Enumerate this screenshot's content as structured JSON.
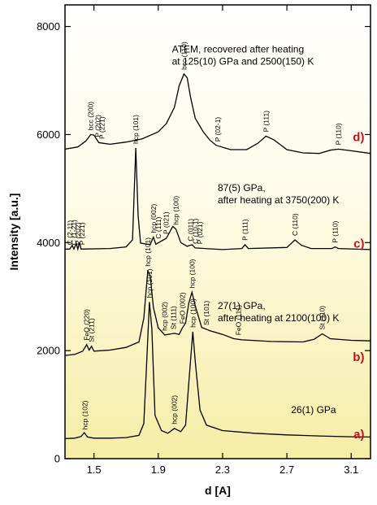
{
  "chart_data": {
    "type": "line",
    "xlabel": "d [A]",
    "ylabel": "Intensity [a.u.]",
    "xlim": [
      1.32,
      3.22
    ],
    "ylim": [
      0,
      8400
    ],
    "x_ticks": [
      1.5,
      1.9,
      2.3,
      2.7,
      3.1
    ],
    "y_ticks": [
      0,
      2000,
      4000,
      6000,
      8000
    ],
    "background": "yellow-gradient-bottom",
    "series": [
      {
        "letter": "a)",
        "annotation": [
          "26(1) GPa"
        ],
        "points": [
          [
            1.32,
            370
          ],
          [
            1.38,
            380
          ],
          [
            1.42,
            410
          ],
          [
            1.44,
            480
          ],
          [
            1.46,
            400
          ],
          [
            1.5,
            380
          ],
          [
            1.6,
            380
          ],
          [
            1.7,
            390
          ],
          [
            1.78,
            430
          ],
          [
            1.81,
            650
          ],
          [
            1.83,
            1900
          ],
          [
            1.845,
            2900
          ],
          [
            1.86,
            2400
          ],
          [
            1.88,
            800
          ],
          [
            1.92,
            520
          ],
          [
            1.96,
            470
          ],
          [
            2.0,
            560
          ],
          [
            2.04,
            500
          ],
          [
            2.07,
            620
          ],
          [
            2.095,
            1600
          ],
          [
            2.115,
            2350
          ],
          [
            2.13,
            1800
          ],
          [
            2.16,
            900
          ],
          [
            2.2,
            620
          ],
          [
            2.3,
            520
          ],
          [
            2.5,
            470
          ],
          [
            2.7,
            440
          ],
          [
            2.9,
            420
          ],
          [
            3.1,
            405
          ],
          [
            3.22,
            400
          ]
        ],
        "peaks": [
          {
            "label": "hcp (102)",
            "d": 1.445
          },
          {
            "label": "hcp (101)",
            "d": 1.845
          },
          {
            "label": "hcp (002)",
            "d": 2.0
          },
          {
            "label": "hcp (100)",
            "d": 2.115
          }
        ]
      },
      {
        "letter": "b)",
        "annotation": [
          "27(1) GPa,",
          "after heating at 2100(100) K"
        ],
        "points": [
          [
            1.32,
            1910
          ],
          [
            1.38,
            1930
          ],
          [
            1.43,
            1990
          ],
          [
            1.455,
            2110
          ],
          [
            1.47,
            2010
          ],
          [
            1.485,
            2080
          ],
          [
            1.5,
            1990
          ],
          [
            1.6,
            2010
          ],
          [
            1.7,
            2060
          ],
          [
            1.78,
            2160
          ],
          [
            1.81,
            2600
          ],
          [
            1.835,
            3480
          ],
          [
            1.85,
            3380
          ],
          [
            1.87,
            2800
          ],
          [
            1.9,
            2420
          ],
          [
            1.94,
            2290
          ],
          [
            2.0,
            2320
          ],
          [
            2.03,
            2300
          ],
          [
            2.05,
            2420
          ],
          [
            2.07,
            2510
          ],
          [
            2.09,
            2880
          ],
          [
            2.11,
            3080
          ],
          [
            2.13,
            2830
          ],
          [
            2.17,
            2430
          ],
          [
            2.22,
            2370
          ],
          [
            2.3,
            2300
          ],
          [
            2.37,
            2220
          ],
          [
            2.42,
            2200
          ],
          [
            2.6,
            2170
          ],
          [
            2.8,
            2160
          ],
          [
            2.87,
            2210
          ],
          [
            2.92,
            2310
          ],
          [
            2.97,
            2220
          ],
          [
            3.1,
            2190
          ],
          [
            3.22,
            2180
          ]
        ],
        "peaks": [
          {
            "label": "FeO (220)",
            "d": 1.455
          },
          {
            "label": "St (211)",
            "d": 1.485
          },
          {
            "label": "hcp (101)",
            "d": 1.835
          },
          {
            "label": "hcp (002)",
            "d": 1.94
          },
          {
            "label": "St (111)",
            "d": 1.995
          },
          {
            "label": "FeO (002)",
            "d": 2.05
          },
          {
            "label": "hcp (100)",
            "d": 2.11
          },
          {
            "label": "St (101)",
            "d": 2.2
          },
          {
            "label": "FeO (111)",
            "d": 2.4
          },
          {
            "label": "St (110)",
            "d": 2.92
          }
        ]
      },
      {
        "letter": "c)",
        "annotation": [
          "87(5) GPa,",
          "after heating at 3750(200) K"
        ],
        "points": [
          [
            1.32,
            3880
          ],
          [
            1.35,
            3880
          ],
          [
            1.365,
            3950
          ],
          [
            1.375,
            3880
          ],
          [
            1.39,
            3980
          ],
          [
            1.4,
            3880
          ],
          [
            1.41,
            4000
          ],
          [
            1.42,
            3880
          ],
          [
            1.6,
            3890
          ],
          [
            1.7,
            3920
          ],
          [
            1.74,
            4050
          ],
          [
            1.76,
            5750
          ],
          [
            1.775,
            4500
          ],
          [
            1.79,
            3990
          ],
          [
            1.85,
            3960
          ],
          [
            1.87,
            4100
          ],
          [
            1.885,
            3970
          ],
          [
            1.95,
            4080
          ],
          [
            1.99,
            4300
          ],
          [
            2.01,
            4250
          ],
          [
            2.04,
            4000
          ],
          [
            2.08,
            3930
          ],
          [
            2.11,
            3960
          ],
          [
            2.13,
            3900
          ],
          [
            2.3,
            3870
          ],
          [
            2.42,
            3890
          ],
          [
            2.44,
            3960
          ],
          [
            2.46,
            3890
          ],
          [
            2.7,
            3910
          ],
          [
            2.75,
            4050
          ],
          [
            2.79,
            3950
          ],
          [
            2.85,
            3890
          ],
          [
            2.98,
            3890
          ],
          [
            3.0,
            3920
          ],
          [
            3.02,
            3890
          ],
          [
            3.22,
            3870
          ]
        ],
        "peaks": [
          {
            "label": "C (2-11)",
            "d": 1.35
          },
          {
            "label": "C (1-21)",
            "d": 1.375
          },
          {
            "label": "P (202)",
            "d": 1.4
          },
          {
            "label": "P (221)",
            "d": 1.425
          },
          {
            "label": "hcp (101)",
            "d": 1.76
          },
          {
            "label": "hcp (002)",
            "d": 1.87
          },
          {
            "label": "C (111)",
            "d": 1.9
          },
          {
            "label": "P (021)",
            "d": 1.95
          },
          {
            "label": "hcp (100)",
            "d": 2.01
          },
          {
            "label": "C (011)",
            "d": 2.1
          },
          {
            "label": "C (10-1)",
            "d": 2.13
          },
          {
            "label": "P (021)",
            "d": 2.16
          },
          {
            "label": "P (111)",
            "d": 2.44
          },
          {
            "label": "C (110)",
            "d": 2.75
          },
          {
            "label": "P (110)",
            "d": 3.0
          }
        ]
      },
      {
        "letter": "d)",
        "annotation": [
          "ATEM, recovered after heating",
          "at 125(10) GPa and 2500(150) K"
        ],
        "points": [
          [
            1.32,
            5730
          ],
          [
            1.4,
            5770
          ],
          [
            1.45,
            5880
          ],
          [
            1.48,
            6000
          ],
          [
            1.5,
            5990
          ],
          [
            1.53,
            5850
          ],
          [
            1.6,
            5820
          ],
          [
            1.7,
            5860
          ],
          [
            1.8,
            5920
          ],
          [
            1.9,
            6050
          ],
          [
            1.95,
            6200
          ],
          [
            2.0,
            6500
          ],
          [
            2.03,
            6900
          ],
          [
            2.06,
            7120
          ],
          [
            2.08,
            7050
          ],
          [
            2.1,
            6700
          ],
          [
            2.13,
            6300
          ],
          [
            2.18,
            6050
          ],
          [
            2.22,
            5900
          ],
          [
            2.26,
            5800
          ],
          [
            2.35,
            5720
          ],
          [
            2.45,
            5720
          ],
          [
            2.52,
            5840
          ],
          [
            2.57,
            5970
          ],
          [
            2.62,
            5900
          ],
          [
            2.7,
            5720
          ],
          [
            2.8,
            5660
          ],
          [
            2.9,
            5650
          ],
          [
            2.97,
            5710
          ],
          [
            3.02,
            5730
          ],
          [
            3.1,
            5700
          ],
          [
            3.22,
            5650
          ]
        ],
        "peaks": [
          {
            "label": "bcc (200)",
            "d": 1.48
          },
          {
            "label": "P (202)",
            "d": 1.525
          },
          {
            "label": "P (221)",
            "d": 1.55
          },
          {
            "label": "bcc (110)",
            "d": 2.06
          },
          {
            "label": "P (02-1)",
            "d": 2.27
          },
          {
            "label": "P (111)",
            "d": 2.57
          },
          {
            "label": "P (110)",
            "d": 3.02
          }
        ]
      }
    ]
  }
}
